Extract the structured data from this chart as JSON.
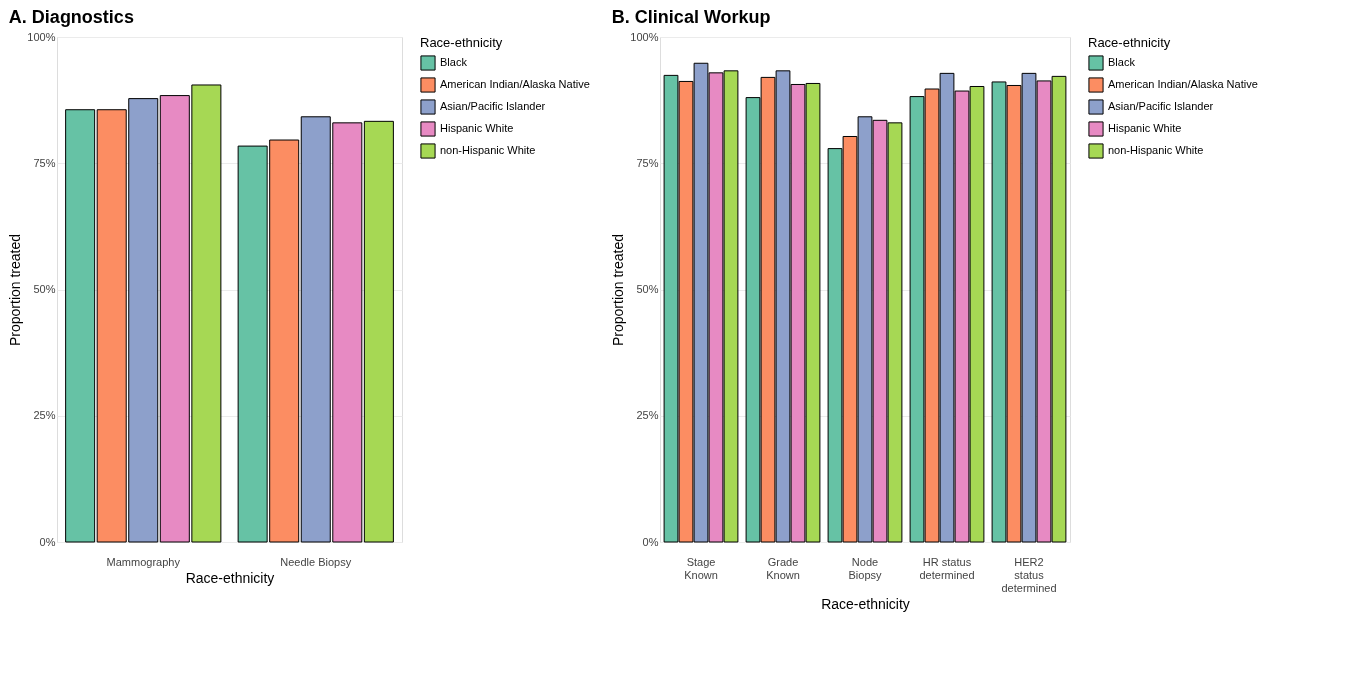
{
  "chart_data": [
    {
      "type": "bar",
      "title": "A. Diagnostics",
      "xlabel": "Race-ethnicity",
      "ylabel": "Proportion treated",
      "legend_title": "Race-ethnicity",
      "legend": "right",
      "grid": "y",
      "categories": [
        "Mammography",
        "Needle Biopsy"
      ],
      "ylim": [
        0,
        100
      ],
      "yticks": [
        {
          "value": 0,
          "label": "0%"
        },
        {
          "value": 25,
          "label": "25%"
        },
        {
          "value": 50,
          "label": "50%"
        },
        {
          "value": 75,
          "label": "75%"
        },
        {
          "value": 100,
          "label": "100%"
        }
      ],
      "series": [
        {
          "name": "Black",
          "color": "#66c2a5",
          "values": [
            85.6,
            78.4
          ]
        },
        {
          "name": "American Indian/Alaska Native",
          "color": "#fc8d62",
          "values": [
            85.6,
            79.6
          ]
        },
        {
          "name": "Asian/Pacific Islander",
          "color": "#8da0cb",
          "values": [
            87.8,
            84.2
          ]
        },
        {
          "name": "Hispanic White",
          "color": "#e78ac3",
          "values": [
            88.4,
            83.0
          ]
        },
        {
          "name": "non-Hispanic White",
          "color": "#a6d854",
          "values": [
            90.5,
            83.3
          ]
        }
      ]
    },
    {
      "type": "bar",
      "title": "B. Clinical Workup",
      "xlabel": "Race-ethnicity",
      "ylabel": "Proportion treated",
      "legend_title": "Race-ethnicity",
      "legend": "right",
      "grid": "y",
      "categories": [
        "Stage\nKnown",
        "Grade\nKnown",
        "Node\nBiopsy",
        "HR status\ndetermined",
        "HER2\nstatus\ndetermined"
      ],
      "ylim": [
        0,
        100
      ],
      "yticks": [
        {
          "value": 0,
          "label": "0%"
        },
        {
          "value": 25,
          "label": "25%"
        },
        {
          "value": 50,
          "label": "50%"
        },
        {
          "value": 75,
          "label": "75%"
        },
        {
          "value": 100,
          "label": "100%"
        }
      ],
      "series": [
        {
          "name": "Black",
          "color": "#66c2a5",
          "values": [
            92.4,
            88.0,
            77.9,
            88.2,
            91.1
          ]
        },
        {
          "name": "American Indian/Alaska Native",
          "color": "#fc8d62",
          "values": [
            91.2,
            92.0,
            80.3,
            89.7,
            90.4
          ]
        },
        {
          "name": "Asian/Pacific Islander",
          "color": "#8da0cb",
          "values": [
            94.8,
            93.3,
            84.2,
            92.8,
            92.8
          ]
        },
        {
          "name": "Hispanic White",
          "color": "#e78ac3",
          "values": [
            92.9,
            90.6,
            83.5,
            89.3,
            91.3
          ]
        },
        {
          "name": "non-Hispanic White",
          "color": "#a6d854",
          "values": [
            93.3,
            90.8,
            83.0,
            90.2,
            92.2
          ]
        }
      ]
    }
  ]
}
